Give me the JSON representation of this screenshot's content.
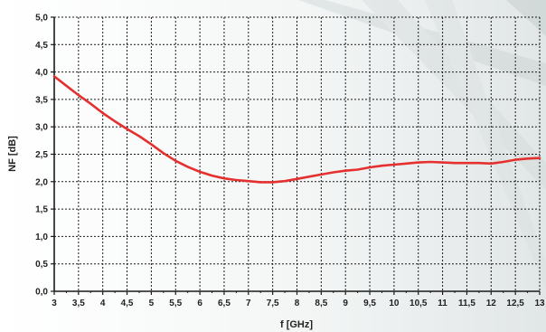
{
  "chart_data": {
    "type": "line",
    "title": "",
    "xlabel": "f [GHz]",
    "ylabel": "NF [dB]",
    "xlim": [
      3,
      13
    ],
    "ylim": [
      0,
      5
    ],
    "x_ticks": [
      "3",
      "3,5",
      "4",
      "4,5",
      "5",
      "5,5",
      "6",
      "6,5",
      "7",
      "7,5",
      "8",
      "8,5",
      "9",
      "9,5",
      "10",
      "10,5",
      "11",
      "11,5",
      "12",
      "12,5",
      "13"
    ],
    "y_ticks": [
      "0,0",
      "0,5",
      "1,0",
      "1,5",
      "2,0",
      "2,5",
      "3,0",
      "3,5",
      "4,0",
      "4,5",
      "5,0"
    ],
    "grid": true,
    "grid_style": "dashed",
    "series": [
      {
        "color": "#e53030",
        "points": [
          [
            3.0,
            3.92
          ],
          [
            3.25,
            3.75
          ],
          [
            3.5,
            3.58
          ],
          [
            3.75,
            3.42
          ],
          [
            4.0,
            3.25
          ],
          [
            4.25,
            3.1
          ],
          [
            4.5,
            2.96
          ],
          [
            4.75,
            2.83
          ],
          [
            5.0,
            2.68
          ],
          [
            5.25,
            2.52
          ],
          [
            5.5,
            2.38
          ],
          [
            5.75,
            2.27
          ],
          [
            6.0,
            2.18
          ],
          [
            6.25,
            2.11
          ],
          [
            6.5,
            2.06
          ],
          [
            6.75,
            2.03
          ],
          [
            7.0,
            2.01
          ],
          [
            7.25,
            1.99
          ],
          [
            7.5,
            1.99
          ],
          [
            7.75,
            2.01
          ],
          [
            8.0,
            2.05
          ],
          [
            8.25,
            2.09
          ],
          [
            8.5,
            2.13
          ],
          [
            8.75,
            2.17
          ],
          [
            9.0,
            2.2
          ],
          [
            9.25,
            2.22
          ],
          [
            9.5,
            2.26
          ],
          [
            9.75,
            2.29
          ],
          [
            10.0,
            2.31
          ],
          [
            10.25,
            2.33
          ],
          [
            10.5,
            2.35
          ],
          [
            10.75,
            2.36
          ],
          [
            11.0,
            2.35
          ],
          [
            11.25,
            2.34
          ],
          [
            11.5,
            2.34
          ],
          [
            11.75,
            2.34
          ],
          [
            12.0,
            2.33
          ],
          [
            12.25,
            2.36
          ],
          [
            12.5,
            2.4
          ],
          [
            12.75,
            2.42
          ],
          [
            13.0,
            2.43
          ]
        ]
      }
    ]
  }
}
